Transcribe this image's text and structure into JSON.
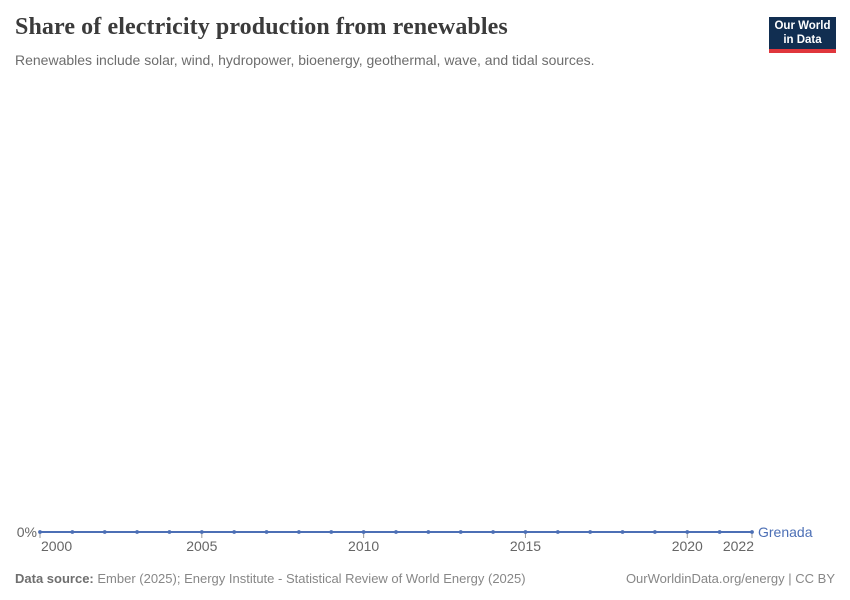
{
  "header": {
    "title": "Share of electricity production from renewables",
    "subtitle": "Renewables include solar, wind, hydropower, bioenergy, geothermal, wave, and tidal sources."
  },
  "logo": {
    "line1": "Our World",
    "line2": "in Data",
    "bg_color": "#112e51",
    "accent_color": "#e0363c"
  },
  "footer": {
    "source_label": "Data source:",
    "source_text": " Ember (2025); Energy Institute - Statistical Review of World Energy (2025)",
    "right_text": "OurWorldinData.org/energy | CC BY"
  },
  "chart_data": {
    "type": "line",
    "title": "Share of electricity production from renewables",
    "xlabel": "",
    "ylabel": "",
    "unit": "%",
    "grid": false,
    "x": [
      2000,
      2001,
      2002,
      2003,
      2004,
      2005,
      2006,
      2007,
      2008,
      2009,
      2010,
      2011,
      2012,
      2013,
      2014,
      2015,
      2016,
      2017,
      2018,
      2019,
      2020,
      2021,
      2022
    ],
    "series": [
      {
        "name": "Grenada",
        "color": "#4c6fb5",
        "values": [
          0,
          0,
          0,
          0,
          0,
          0,
          0,
          0,
          0,
          0,
          0,
          0,
          0,
          0,
          0,
          0,
          0,
          0,
          0,
          0,
          0,
          0,
          0
        ]
      }
    ],
    "x_ticks": [
      "2000",
      "2005",
      "2010",
      "2015",
      "2020",
      "2022"
    ],
    "y_tick_label": "0%",
    "y_ticks_shown": [
      "0%"
    ],
    "xlim": [
      2000,
      2022
    ],
    "entity_label": "Grenada",
    "axis_text_color": "#666666",
    "tick_mark_color": "#999999"
  }
}
